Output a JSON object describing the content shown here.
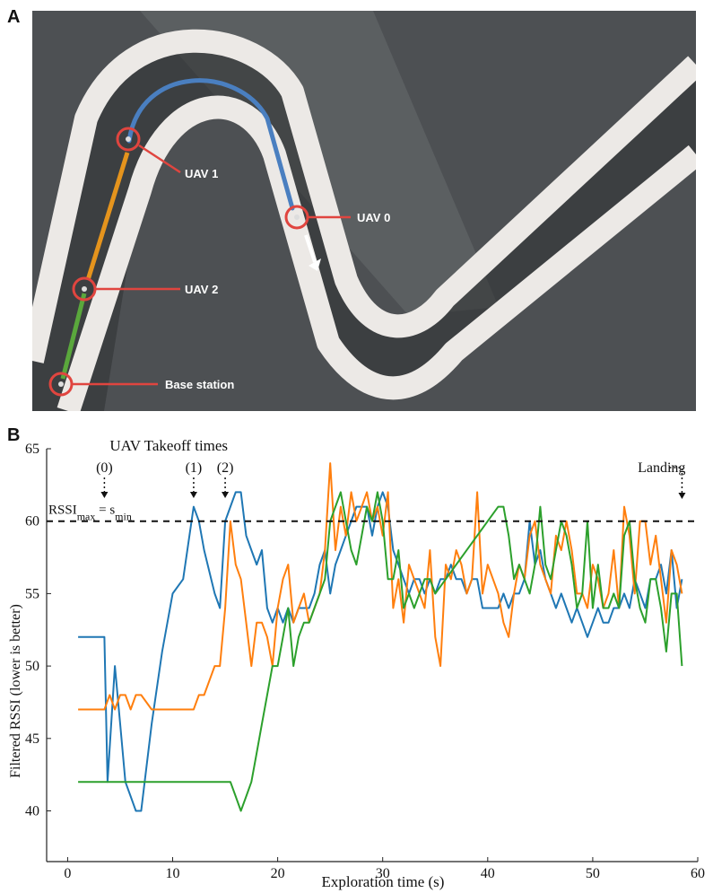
{
  "panels": {
    "a": "A",
    "b": "B"
  },
  "photo": {
    "labels": {
      "uav1": "UAV 1",
      "uav0": "UAV 0",
      "uav2": "UAV 2",
      "base": "Base station"
    },
    "colors": {
      "floor": "#4a4d50",
      "track_edge": "#ece9e6",
      "marker": "#e0453f",
      "uav0_path": "#4a7fc0",
      "uav1_path": "#e5941d",
      "uav2_path": "#5aa83c"
    }
  },
  "chart_data": {
    "type": "line",
    "xlabel": "Exploration time (s)",
    "ylabel": "Filtered RSSI (lower is better)",
    "xlim": [
      -2,
      60
    ],
    "ylim": [
      36.5,
      65
    ],
    "xticks": [
      0,
      10,
      20,
      30,
      40,
      50,
      60
    ],
    "yticks": [
      40,
      45,
      50,
      55,
      60,
      65
    ],
    "threshold": {
      "value": 60,
      "label_main": "RSSI",
      "label_sub1": "max",
      "label_eq": " = s",
      "label_sub2": "min"
    },
    "takeoff_title": "UAV Takeoff times",
    "takeoff": [
      {
        "label": "(0)",
        "x": 3.5
      },
      {
        "label": "(1)",
        "x": 12
      },
      {
        "label": "(2)",
        "x": 15
      }
    ],
    "landing": {
      "label": "Landing",
      "x": 58.5
    },
    "series": [
      {
        "color": "#1f77b4",
        "x": [
          1,
          3.5,
          3.8,
          4.5,
          5,
          5.5,
          6,
          6.5,
          7,
          8,
          9,
          10,
          11,
          12,
          12.5,
          13,
          14,
          14.5,
          15,
          15.5,
          16,
          16.5,
          17,
          17.5,
          18,
          18.5,
          19,
          19.5,
          20,
          20.5,
          21,
          21.5,
          22,
          22.5,
          23,
          23.5,
          24,
          24.5,
          25,
          25.5,
          26,
          26.5,
          27,
          27.5,
          28,
          28.5,
          29,
          29.5,
          30,
          30.5,
          31,
          31.5,
          32,
          32.5,
          33,
          33.5,
          34,
          34.5,
          35,
          35.5,
          36,
          36.5,
          37,
          37.5,
          38,
          38.5,
          39,
          39.5,
          40,
          40.5,
          41,
          41.5,
          42,
          42.5,
          43,
          43.5,
          44,
          44.5,
          45,
          45.5,
          46,
          46.5,
          47,
          47.5,
          48,
          48.5,
          49,
          49.5,
          50,
          50.5,
          51,
          51.5,
          52,
          52.5,
          53,
          53.5,
          54,
          54.5,
          55,
          55.5,
          56,
          56.5,
          57,
          57.5,
          58,
          58.5
        ],
        "y": [
          52,
          52,
          42,
          50,
          46,
          42,
          41,
          40,
          40,
          46,
          51,
          55,
          56,
          61,
          60,
          58,
          55,
          54,
          60,
          61,
          62,
          62,
          59,
          58,
          57,
          58,
          54,
          53,
          54,
          53,
          54,
          53,
          54,
          54,
          54,
          55,
          57,
          58,
          55,
          57,
          58,
          59,
          60,
          61,
          61,
          61,
          59,
          61,
          62,
          61,
          58,
          57,
          56,
          55,
          56,
          56,
          55,
          56,
          55,
          56,
          56,
          57,
          56,
          56,
          55,
          56,
          56,
          54,
          54,
          54,
          54,
          55,
          54,
          55,
          55,
          56,
          60,
          57,
          58,
          56,
          55,
          54,
          55,
          54,
          53,
          54,
          53,
          52,
          53,
          54,
          53,
          53,
          54,
          54,
          55,
          54,
          56,
          55,
          54,
          56,
          56,
          57,
          55,
          58,
          54,
          56
        ],
        "yv": []
      },
      {
        "color": "#ff7f0e",
        "x": [
          1,
          3.5,
          4,
          4.5,
          5,
          5.5,
          6,
          6.5,
          7,
          8,
          10,
          12,
          12.5,
          13,
          14,
          14.5,
          15,
          15.5,
          16,
          16.5,
          17,
          17.5,
          18,
          18.5,
          19,
          19.5,
          20,
          20.5,
          21,
          21.5,
          22,
          22.5,
          23,
          23.5,
          24,
          24.5,
          25,
          25.5,
          26,
          26.5,
          27,
          27.5,
          28,
          28.5,
          29,
          29.5,
          30,
          30.5,
          31,
          31.5,
          32,
          32.5,
          33,
          33.5,
          34,
          34.5,
          35,
          35.5,
          36,
          36.5,
          37,
          37.5,
          38,
          38.5,
          39,
          39.5,
          40,
          40.5,
          41,
          41.5,
          42,
          42.5,
          43,
          43.5,
          44,
          44.5,
          45,
          45.5,
          46,
          46.5,
          47,
          47.5,
          48,
          48.5,
          49,
          49.5,
          50,
          50.5,
          51,
          51.5,
          52,
          52.5,
          53,
          53.5,
          54,
          54.5,
          55,
          55.5,
          56,
          56.5,
          57,
          57.5,
          58,
          58.5
        ],
        "y": [
          47,
          47,
          48,
          47,
          48,
          48,
          47,
          48,
          48,
          47,
          47,
          47,
          48,
          48,
          50,
          50,
          54,
          60,
          57,
          56,
          53,
          50,
          53,
          53,
          52,
          50,
          54,
          56,
          57,
          53,
          54,
          55,
          53,
          54,
          55,
          58,
          64,
          58,
          61,
          59,
          62,
          60,
          61,
          62,
          60,
          61,
          59,
          62,
          54,
          56,
          53,
          57,
          56,
          55,
          54,
          58,
          52,
          50,
          57,
          56,
          58,
          57,
          55,
          56,
          62,
          55,
          57,
          56,
          55,
          53,
          52,
          55,
          57,
          56,
          59,
          60,
          57,
          56,
          55,
          59,
          58,
          60,
          58,
          55,
          55,
          54,
          57,
          56,
          54,
          55,
          58,
          54,
          61,
          59,
          55,
          60,
          60,
          57,
          59,
          56,
          53,
          58,
          57,
          55
        ],
        "yv": []
      },
      {
        "color": "#2ca02c",
        "x": [
          1,
          15,
          15.5,
          16,
          16.5,
          17,
          17.5,
          18,
          18.5,
          19,
          19.5,
          20,
          20.5,
          21,
          21.5,
          22,
          22.5,
          23,
          23.5,
          24,
          24.5,
          25,
          25.5,
          26,
          26.5,
          27,
          27.5,
          28,
          28.5,
          29,
          29.5,
          30,
          30.5,
          31,
          31.5,
          32,
          32.5,
          33,
          33.5,
          34,
          34.5,
          35,
          41,
          41.5,
          42,
          42.5,
          43,
          43.5,
          44,
          44.5,
          45,
          45.5,
          46,
          46.5,
          47,
          47.5,
          48,
          48.5,
          49,
          49.5,
          50,
          50.5,
          51,
          51.5,
          52,
          52.5,
          53,
          53.5,
          54,
          54.5,
          55,
          55.5,
          56,
          56.5,
          57,
          57.5,
          58,
          58.5
        ],
        "y": [
          42,
          42,
          42,
          41,
          40,
          41,
          42,
          44,
          46,
          48,
          50,
          50,
          52,
          54,
          50,
          52,
          53,
          53,
          54,
          55,
          56,
          60,
          61,
          62,
          60,
          58,
          57,
          59,
          61,
          60,
          62,
          60,
          56,
          56,
          58,
          54,
          55,
          54,
          55,
          56,
          56,
          55,
          61,
          61,
          59,
          56,
          57,
          56,
          55,
          57,
          61,
          57,
          56,
          58,
          60,
          59,
          57,
          54,
          55,
          60,
          54,
          57,
          54,
          54,
          55,
          54,
          59,
          60,
          56,
          54,
          53,
          56,
          56,
          54,
          51,
          55,
          55,
          50
        ],
        "yv": []
      }
    ]
  }
}
